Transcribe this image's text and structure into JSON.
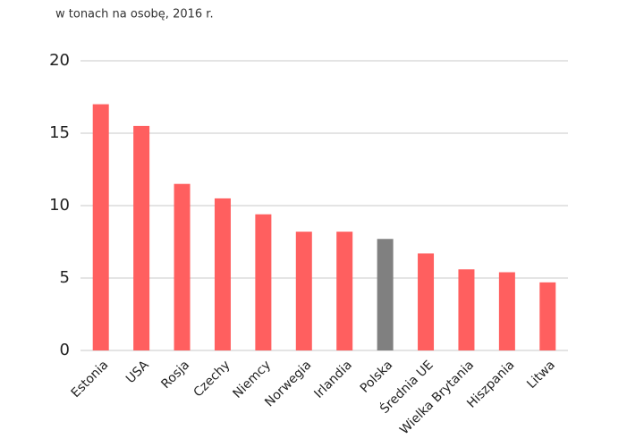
{
  "chart_data": {
    "type": "bar",
    "subtitle": "w tonach na osobę, 2016 r.",
    "categories": [
      "Estonia",
      "USA",
      "Rosja",
      "Czechy",
      "Niemcy",
      "Norwegia",
      "Irlandia",
      "Polska",
      "Średnia UE",
      "Wielka Brytania",
      "Hiszpania",
      "Litwa"
    ],
    "values": [
      17,
      15.5,
      11.5,
      10.5,
      9.4,
      8.2,
      8.2,
      7.7,
      6.7,
      5.6,
      5.4,
      4.7
    ],
    "colors": [
      "#ff5f5f",
      "#ff5f5f",
      "#ff5f5f",
      "#ff5f5f",
      "#ff5f5f",
      "#ff5f5f",
      "#ff5f5f",
      "#808080",
      "#ff5f5f",
      "#ff5f5f",
      "#ff5f5f",
      "#ff5f5f"
    ],
    "ylim": [
      0,
      20
    ],
    "yticks": [
      0,
      5,
      10,
      15,
      20
    ],
    "grid": true
  }
}
